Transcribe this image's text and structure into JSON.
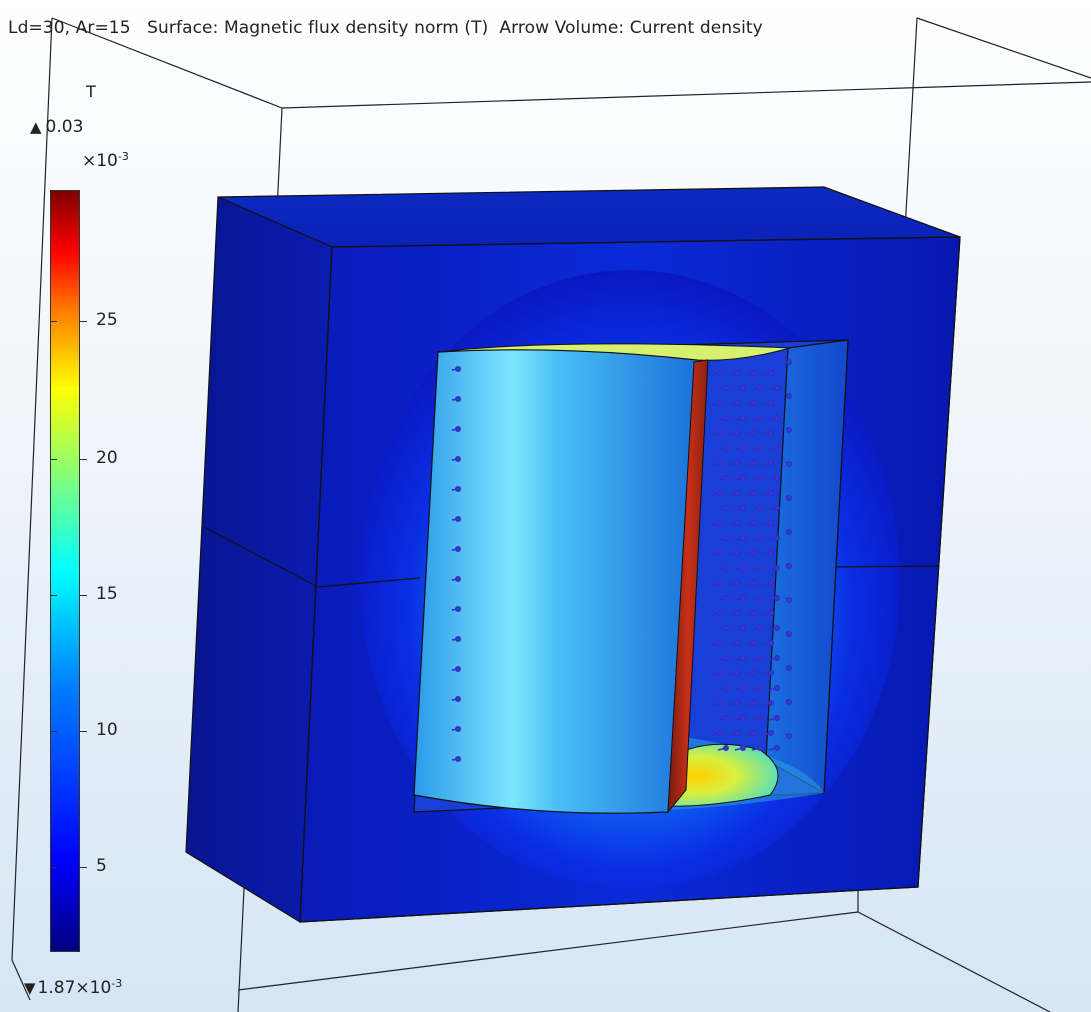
{
  "plot_title": "Ld=30, Ar=15   Surface: Magnetic flux density norm (T)  Arrow Volume: Current density",
  "colorbar": {
    "unit": "T",
    "max_label": "0.03",
    "exponent": "×10",
    "exponent_power": "-3",
    "min_mantissa": "1.87×10",
    "min_power": "-3",
    "ticks": [
      "25",
      "20",
      "15",
      "10",
      "5"
    ],
    "colormap": "jet"
  }
}
